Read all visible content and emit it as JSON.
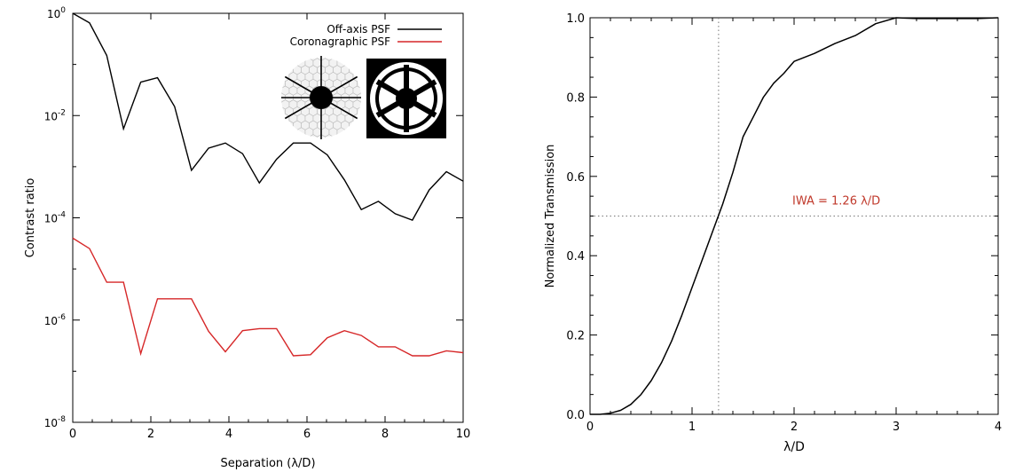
{
  "chart_data": [
    {
      "type": "line",
      "xlabel": "Separation (λ/D)",
      "ylabel": "Contrast ratio",
      "xlim": [
        0,
        10
      ],
      "ylim": [
        1e-08,
        1
      ],
      "yscale": "log",
      "x_ticks": [
        "0",
        "2",
        "4",
        "6",
        "8",
        "10"
      ],
      "y_ticks": [
        {
          "mantissa": "10",
          "exp": "0"
        },
        {
          "mantissa": "10",
          "exp": "-2"
        },
        {
          "mantissa": "10",
          "exp": "-4"
        },
        {
          "mantissa": "10",
          "exp": "-6"
        },
        {
          "mantissa": "10",
          "exp": "-8"
        }
      ],
      "legend_position": "top-right",
      "series": [
        {
          "name": "Off-axis PSF",
          "color": "#000000",
          "x": [
            0,
            0.43,
            0.87,
            1.3,
            1.74,
            2.17,
            2.61,
            3.04,
            3.48,
            3.91,
            4.35,
            4.78,
            5.22,
            5.65,
            6.09,
            6.52,
            6.96,
            7.39,
            7.83,
            8.26,
            8.7,
            9.13,
            9.57,
            10
          ],
          "y": [
            1.0,
            0.65,
            0.15,
            0.0055,
            0.045,
            0.055,
            0.015,
            0.00085,
            0.0023,
            0.0029,
            0.0018,
            0.00048,
            0.0014,
            0.0029,
            0.0029,
            0.0017,
            0.00055,
            0.000145,
            0.00021,
            0.00012,
            9e-05,
            0.00035,
            0.0008,
            0.00052
          ]
        },
        {
          "name": "Coronagraphic PSF",
          "color": "#d62728",
          "x": [
            0,
            0.43,
            0.87,
            1.3,
            1.74,
            2.17,
            2.61,
            3.04,
            3.48,
            3.91,
            4.35,
            4.78,
            5.22,
            5.65,
            6.09,
            6.52,
            6.96,
            7.39,
            7.83,
            8.26,
            8.7,
            9.13,
            9.57,
            10
          ],
          "y": [
            4e-05,
            2.5e-05,
            5.5e-06,
            5.5e-06,
            2.2e-07,
            2.6e-06,
            2.6e-06,
            2.6e-06,
            6e-07,
            2.4e-07,
            6.2e-07,
            6.8e-07,
            6.8e-07,
            2e-07,
            2.1e-07,
            4.5e-07,
            6.2e-07,
            5e-07,
            3e-07,
            3e-07,
            2e-07,
            2e-07,
            2.5e-07,
            2.3e-07
          ]
        }
      ]
    },
    {
      "type": "line",
      "xlabel": "λ/D",
      "ylabel": "Normalized Transmission",
      "xlim": [
        0,
        4
      ],
      "ylim": [
        0,
        1
      ],
      "x_ticks": [
        "0",
        "1",
        "2",
        "3",
        "4"
      ],
      "y_ticks": [
        "0.0",
        "0.2",
        "0.4",
        "0.6",
        "0.8",
        "1.0"
      ],
      "annotation": "IWA = 1.26 λ/D",
      "annotation_color": "#c0392b",
      "reference_lines": {
        "x": 1.26,
        "y": 0.5
      },
      "series": [
        {
          "color": "#000000",
          "x": [
            0,
            0.1,
            0.2,
            0.3,
            0.4,
            0.5,
            0.6,
            0.7,
            0.8,
            0.9,
            1.0,
            1.1,
            1.2,
            1.3,
            1.4,
            1.5,
            1.6,
            1.7,
            1.8,
            1.9,
            2.0,
            2.2,
            2.4,
            2.6,
            2.8,
            3.0,
            3.2,
            3.4,
            3.6,
            3.8,
            4.0
          ],
          "y": [
            0,
            0,
            0.003,
            0.01,
            0.025,
            0.05,
            0.085,
            0.13,
            0.185,
            0.25,
            0.32,
            0.39,
            0.46,
            0.53,
            0.61,
            0.7,
            0.75,
            0.8,
            0.835,
            0.86,
            0.89,
            0.91,
            0.935,
            0.955,
            0.985,
            1.0,
            0.998,
            0.998,
            0.998,
            0.998,
            1.0
          ]
        }
      ]
    }
  ]
}
